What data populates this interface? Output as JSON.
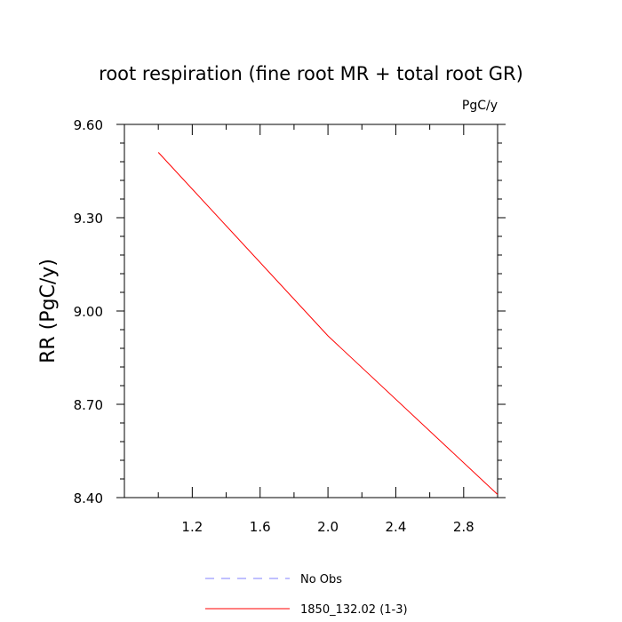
{
  "chart_data": {
    "type": "line",
    "title": "root respiration (fine root MR + total root GR)",
    "units_label": "PgC/y",
    "xlabel": "",
    "ylabel": "RR  (PgC/y)",
    "xlim": [
      0.8,
      3.0
    ],
    "ylim": [
      8.4,
      9.6
    ],
    "x_ticks": [
      1.2,
      1.6,
      2.0,
      2.4,
      2.8
    ],
    "x_tick_labels": [
      "1.2",
      "1.6",
      "2.0",
      "2.4",
      "2.8"
    ],
    "y_ticks": [
      8.4,
      8.7,
      9.0,
      9.3,
      9.6
    ],
    "y_tick_labels": [
      "8.40",
      "8.70",
      "9.00",
      "9.30",
      "9.60"
    ],
    "series": [
      {
        "name": "1850_132.02 (1-3)",
        "color": "#ff0000",
        "dash": "solid",
        "x": [
          1.0,
          2.0,
          3.0
        ],
        "y": [
          9.51,
          8.92,
          8.41
        ]
      }
    ],
    "legend": [
      {
        "label": "No Obs",
        "color": "#8080ff",
        "dash": "dashed"
      },
      {
        "label": "1850_132.02 (1-3)",
        "color": "#ff0000",
        "dash": "solid"
      }
    ]
  }
}
